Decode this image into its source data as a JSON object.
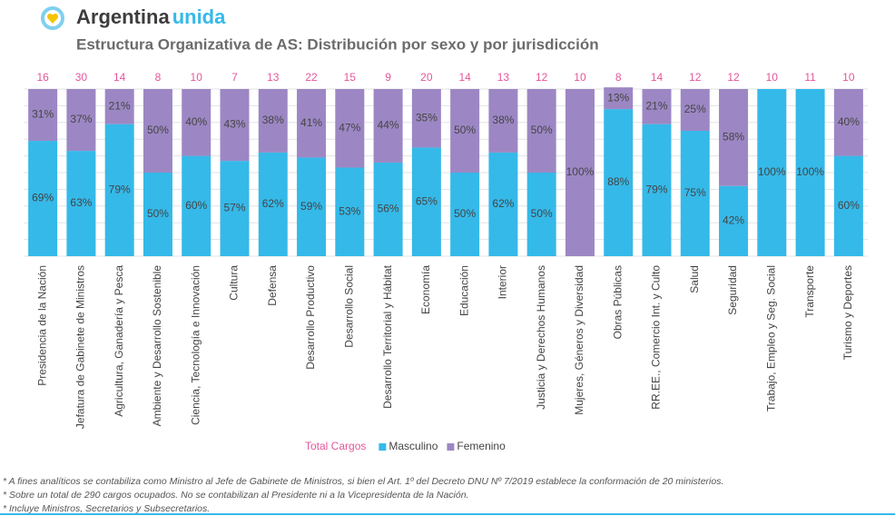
{
  "header": {
    "brand": [
      "Argentina",
      "unida"
    ]
  },
  "chart_data": {
    "type": "stacked_bar",
    "title": "Estructura Organizativa de AS: Distribución por sexo y por jurisdicción",
    "categories": [
      "Presidencia de la Nación",
      "Jefatura de Gabinete de Ministros",
      "Agricultura, Ganadería y Pesca",
      "Ambiente y Desarrollo Sostenible",
      "Ciencia, Tecnología e Innovación",
      "Cultura",
      "Defensa",
      "Desarrollo Productivo",
      "Desarrollo Social",
      "Desarrollo Territorial y Hábitat",
      "Economía",
      "Educación",
      "Interior",
      "Justicia y Derechos Humanos",
      "Mujeres, Géneros y Diversidad",
      "Obras Públicas",
      "RR.EE., Comercio Int. y Culto",
      "Salud",
      "Seguridad",
      "Trabajo, Empleo y Seg. Social",
      "Transporte",
      "Turismo y Deportes"
    ],
    "totals": {
      "name": "Total Cargos",
      "color": "#e5559b",
      "values": [
        16,
        30,
        14,
        8,
        10,
        7,
        13,
        22,
        15,
        9,
        20,
        14,
        13,
        12,
        10,
        8,
        14,
        12,
        12,
        10,
        11,
        10
      ]
    },
    "series": [
      {
        "name": "Masculino",
        "color": "#35b9e9",
        "values": [
          69,
          63,
          79,
          50,
          60,
          57,
          62,
          59,
          53,
          56,
          65,
          50,
          62,
          50,
          0,
          88,
          79,
          75,
          42,
          100,
          100,
          60
        ],
        "value_labels": [
          "69%",
          "63%",
          "79%",
          "50%",
          "60%",
          "57%",
          "62%",
          "59%",
          "53%",
          "56%",
          "65%",
          "50%",
          "62%",
          "50%",
          null,
          "88%",
          "79%",
          "75%",
          "42%",
          "100%",
          "100%",
          "60%"
        ]
      },
      {
        "name": "Femenino",
        "color": "#9c87c4",
        "values": [
          31,
          37,
          21,
          50,
          40,
          43,
          38,
          41,
          47,
          44,
          35,
          50,
          38,
          50,
          100,
          13,
          21,
          25,
          58,
          0,
          0,
          40
        ],
        "value_labels": [
          "31%",
          "37%",
          "21%",
          "50%",
          "40%",
          "43%",
          "38%",
          "41%",
          "47%",
          "44%",
          "35%",
          "50%",
          "38%",
          "50%",
          "100%",
          "13%",
          "21%",
          "25%",
          "58%",
          null,
          null,
          "40%"
        ]
      }
    ],
    "ylim": [
      0,
      100
    ],
    "yticks": [
      0,
      10,
      20,
      30,
      40,
      50,
      60,
      70,
      80,
      90,
      100
    ],
    "grid": true,
    "legend": "bottom",
    "notes": [
      "* A fines analíticos se contabiliza como Ministro al Jefe de Gabinete de Ministros, si bien el Art. 1º del Decreto DNU Nº 7/2019 establece la conformación de 20 ministerios.",
      "* Sobre un total de 290 cargos ocupados. No se contabilizan al Presidente ni a la Vicepresidenta de la Nación.",
      "* Incluye Ministros, Secretarios y Subsecretarios."
    ]
  }
}
